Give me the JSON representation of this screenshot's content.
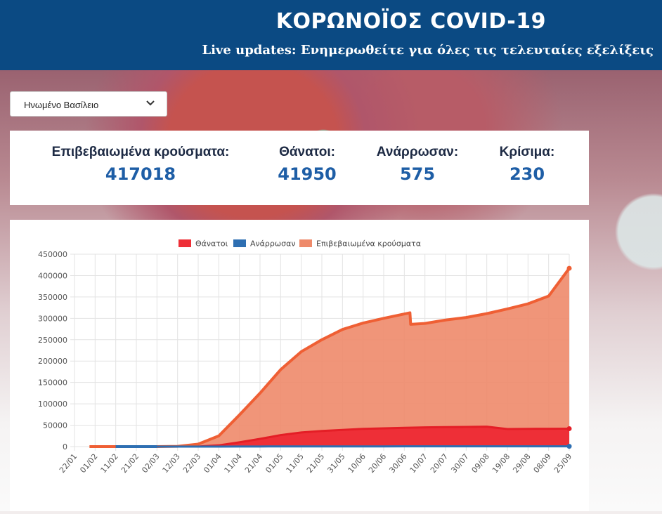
{
  "header": {
    "title": "ΚΟΡΩΝΟΪΟΣ COVID-19",
    "subtitle": "Live updates: Ενημερωθείτε για όλες τις τελευταίες εξελίξεις"
  },
  "country_select": {
    "selected": "Ηνωμένο Βασίλειο"
  },
  "stats": [
    {
      "label": "Επιβεβαιωμένα κρούσματα:",
      "value": "417018"
    },
    {
      "label": "Θάνατοι:",
      "value": "41950"
    },
    {
      "label": "Ανάρρωσαν:",
      "value": "575"
    },
    {
      "label": "Κρίσιμα:",
      "value": "230"
    }
  ],
  "colors": {
    "header_bg": "#0b4a83",
    "deaths": "#ee2f37",
    "recovered": "#2e6fb2",
    "confirmed": "#ee8a6a",
    "confirmed_line": "#ef5f34"
  },
  "chart_data": {
    "type": "area",
    "legend_position": "top",
    "grid": true,
    "ylim": [
      0,
      450000
    ],
    "yticks": [
      450000,
      400000,
      350000,
      300000,
      250000,
      200000,
      150000,
      100000,
      50000,
      0
    ],
    "ytick_labels": [
      "450000",
      "400000",
      "350000",
      "300000",
      "250000",
      "200000",
      "150000",
      "100000",
      "50000",
      "0"
    ],
    "xtick_labels": [
      "22/01",
      "01/02",
      "11/02",
      "21/02",
      "02/03",
      "12/03",
      "22/03",
      "01/04",
      "11/04",
      "21/04",
      "01/05",
      "11/05",
      "21/05",
      "31/05",
      "10/06",
      "20/06",
      "30/06",
      "10/07",
      "20/07",
      "30/07",
      "09/08",
      "19/08",
      "29/08",
      "08/09",
      "25/09"
    ],
    "series": [
      {
        "name": "Θάνατοι",
        "values": [
          0,
          0,
          0,
          0,
          0,
          0,
          300,
          3000,
          10000,
          18000,
          27000,
          33000,
          36500,
          39000,
          41500,
          42800,
          44000,
          45000,
          45500,
          46000,
          46500,
          41000,
          41500,
          41700,
          41950
        ]
      },
      {
        "name": "Ανάρρωσαν",
        "values": [
          0,
          0,
          0,
          0,
          0,
          0,
          0,
          0,
          200,
          300,
          350,
          400,
          400,
          450,
          500,
          500,
          520,
          540,
          550,
          560,
          570,
          570,
          575,
          575,
          575
        ]
      },
      {
        "name": "Επιβεβαιωμένα κρούσματα",
        "values": [
          0,
          2,
          9,
          9,
          39,
          590,
          5700,
          25000,
          74000,
          125000,
          180000,
          222000,
          250000,
          274000,
          289000,
          300000,
          310000,
          288000,
          296000,
          302000,
          311000,
          322000,
          334000,
          352000,
          417018
        ]
      }
    ],
    "confirmed_dip_points": {
      "before": 313000,
      "after": 286000
    }
  }
}
